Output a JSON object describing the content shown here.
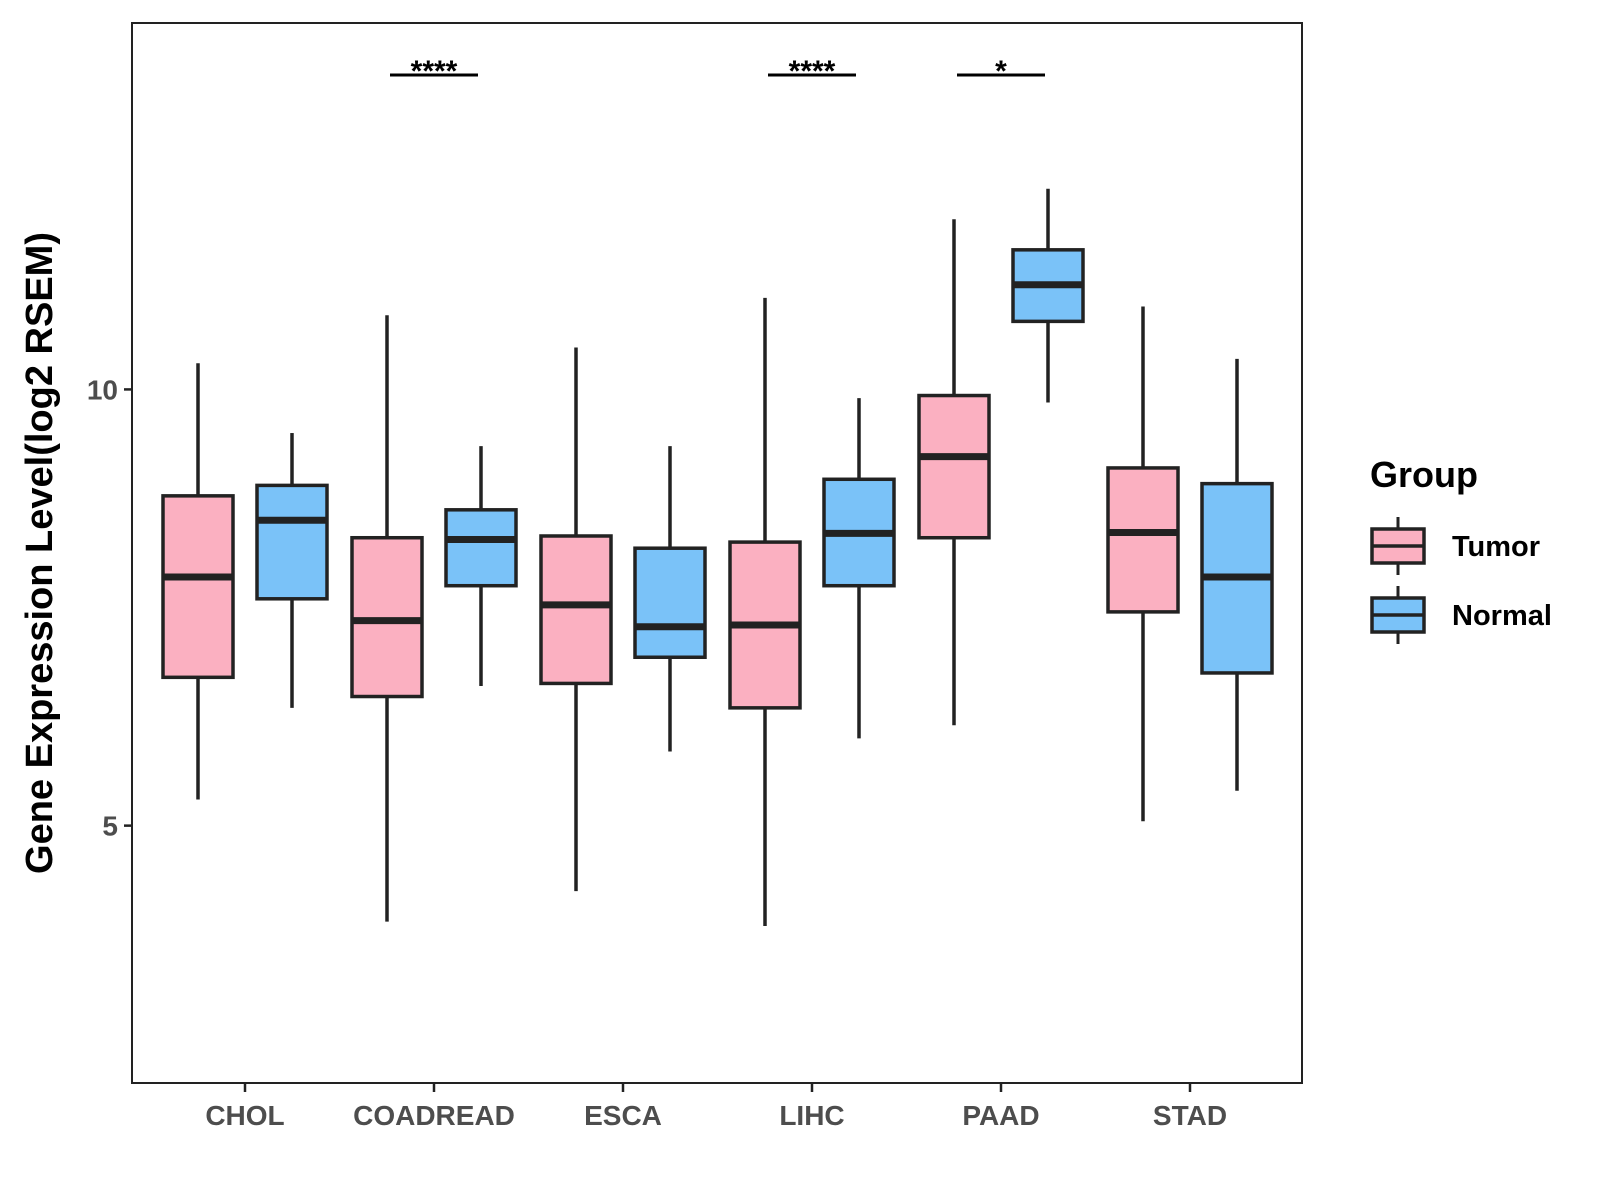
{
  "chart_data": {
    "type": "boxplot",
    "ylabel": "Gene Expression Level(log2 RSEM)",
    "xlabel": "",
    "ylim": [
      2.05,
      14.2
    ],
    "yticks": [
      5,
      10
    ],
    "categories": [
      "CHOL",
      "COADREAD",
      "ESCA",
      "LIHC",
      "PAAD",
      "STAD"
    ],
    "legend": {
      "title": "Group",
      "position": "right",
      "entries": [
        {
          "name": "Tumor",
          "color": "#FBB0C1"
        },
        {
          "name": "Normal",
          "color": "#7AC2F8"
        }
      ]
    },
    "grid": false,
    "series": [
      {
        "name": "Tumor",
        "color": "#FBB0C1",
        "boxes": [
          {
            "min": 5.3,
            "q1": 6.7,
            "median": 7.85,
            "q3": 8.78,
            "max": 10.3
          },
          {
            "min": 3.9,
            "q1": 6.48,
            "median": 7.35,
            "q3": 8.3,
            "max": 10.85
          },
          {
            "min": 4.25,
            "q1": 6.63,
            "median": 7.53,
            "q3": 8.32,
            "max": 10.48
          },
          {
            "min": 3.85,
            "q1": 6.35,
            "median": 7.3,
            "q3": 8.25,
            "max": 11.05
          },
          {
            "min": 6.15,
            "q1": 8.3,
            "median": 9.23,
            "q3": 9.93,
            "max": 11.95
          },
          {
            "min": 5.05,
            "q1": 7.45,
            "median": 8.36,
            "q3": 9.1,
            "max": 10.95
          }
        ]
      },
      {
        "name": "Normal",
        "color": "#7AC2F8",
        "boxes": [
          {
            "min": 6.35,
            "q1": 7.6,
            "median": 8.5,
            "q3": 8.9,
            "max": 9.5
          },
          {
            "min": 6.6,
            "q1": 7.75,
            "median": 8.28,
            "q3": 8.62,
            "max": 9.35
          },
          {
            "min": 5.85,
            "q1": 6.93,
            "median": 7.28,
            "q3": 8.18,
            "max": 9.35
          },
          {
            "min": 6.0,
            "q1": 7.75,
            "median": 8.35,
            "q3": 8.97,
            "max": 9.9
          },
          {
            "min": 9.85,
            "q1": 10.78,
            "median": 11.2,
            "q3": 11.6,
            "max": 12.3
          },
          {
            "min": 5.4,
            "q1": 6.75,
            "median": 7.85,
            "q3": 8.92,
            "max": 10.35
          }
        ]
      }
    ],
    "annotations": [
      {
        "category": "COADREAD",
        "label": "****"
      },
      {
        "category": "LIHC",
        "label": "****"
      },
      {
        "category": "PAAD",
        "label": "*"
      }
    ]
  }
}
